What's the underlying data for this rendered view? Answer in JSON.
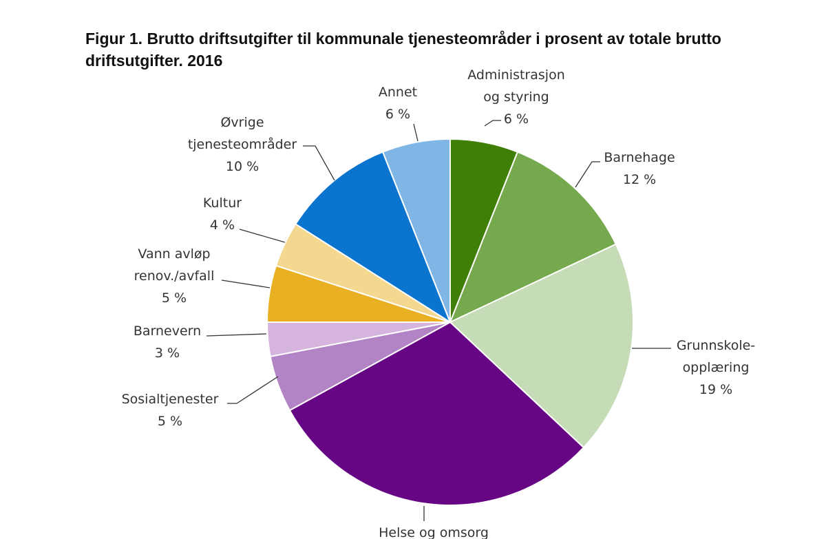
{
  "chart_data": {
    "type": "pie",
    "title": "Figur 1. Brutto driftsutgifter til kommunale tjenesteområder i prosent av totale brutto driftsutgifter. 2016",
    "slices": [
      {
        "label": [
          "Administrasjon",
          "og styring"
        ],
        "value": 6,
        "value_label": "6 %",
        "color": "#3f7f06"
      },
      {
        "label": [
          "Barnehage"
        ],
        "value": 12,
        "value_label": "12 %",
        "color": "#76a94d"
      },
      {
        "label": [
          "Grunnskole-",
          "opplæring"
        ],
        "value": 19,
        "value_label": "19 %",
        "color": "#c6dcb6"
      },
      {
        "label": [
          "Helse og omsorg"
        ],
        "value": 30,
        "value_label": "",
        "color": "#670684"
      },
      {
        "label": [
          "Sosialtjenester"
        ],
        "value": 5,
        "value_label": "5 %",
        "color": "#b384c5"
      },
      {
        "label": [
          "Barnevern"
        ],
        "value": 3,
        "value_label": "3 %",
        "color": "#d5b5dd"
      },
      {
        "label": [
          "Vann avløp",
          "renov./avfall"
        ],
        "value": 5,
        "value_label": "5 %",
        "color": "#e9b024"
      },
      {
        "label": [
          "Kultur"
        ],
        "value": 4,
        "value_label": "4 %",
        "color": "#f4d88f"
      },
      {
        "label": [
          "Øvrige",
          "tjenesteområder"
        ],
        "value": 10,
        "value_label": "10 %",
        "color": "#0a74ce"
      },
      {
        "label": [
          "Annet"
        ],
        "value": 6,
        "value_label": "6 %",
        "color": "#7fb6e6"
      }
    ]
  }
}
